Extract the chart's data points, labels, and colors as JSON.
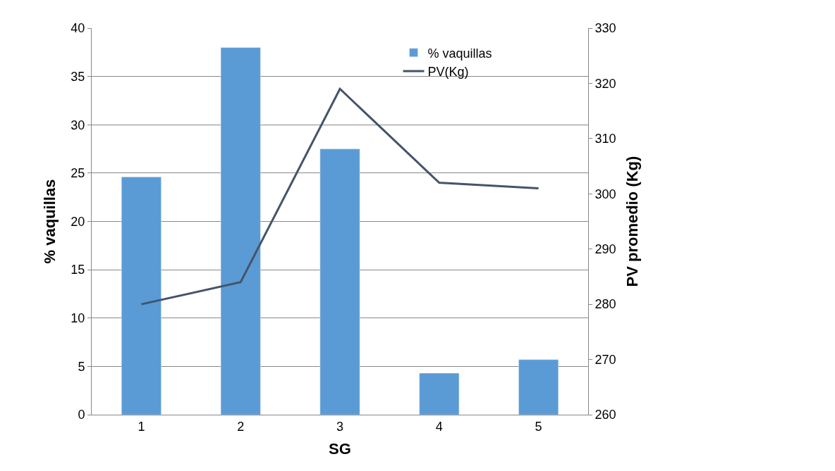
{
  "chart_data": {
    "type": "bar",
    "xlabel": "SG",
    "ylabel": "% vaquillas",
    "y2label": "PV promedio (Kg)",
    "categories": [
      "1",
      "2",
      "3",
      "4",
      "5"
    ],
    "series": [
      {
        "name": "% vaquillas",
        "color": "#5b9bd5",
        "values": [
          24.6,
          38.0,
          27.5,
          4.3,
          5.7
        ]
      },
      {
        "name": "PV(Kg)",
        "type": "line",
        "axis": "y2",
        "color": "#44546a",
        "marker": "none",
        "values": [
          280,
          284,
          319,
          302,
          301
        ]
      }
    ],
    "ylim": [
      0,
      40
    ],
    "yticks": [
      0,
      5,
      10,
      15,
      20,
      25,
      30,
      35,
      40
    ],
    "y2lim": [
      260,
      330
    ],
    "y2ticks": [
      260,
      270,
      280,
      290,
      300,
      310,
      320,
      330
    ],
    "grid": "y",
    "legend": "top right"
  }
}
